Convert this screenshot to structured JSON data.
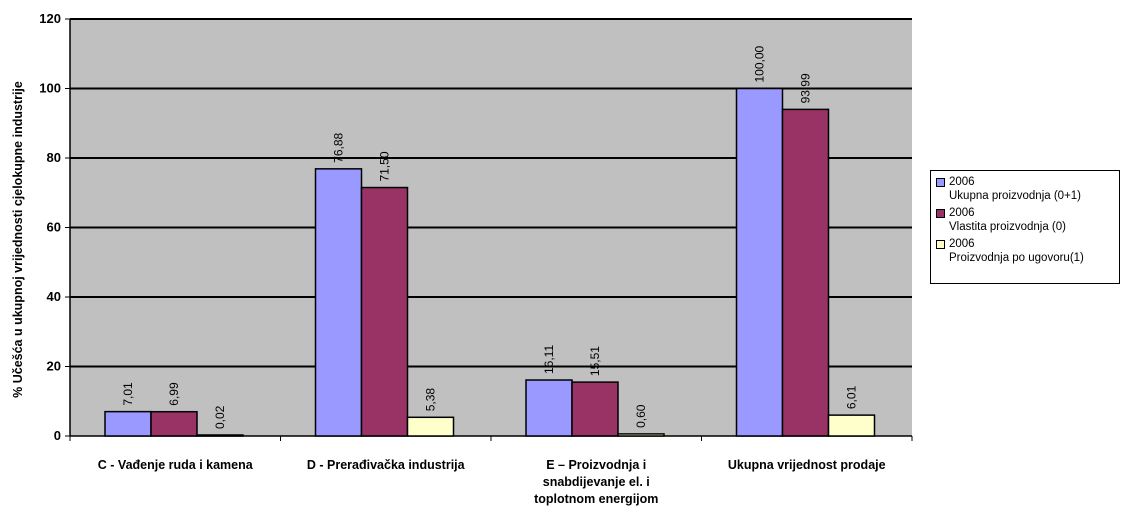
{
  "chart_data": {
    "type": "bar",
    "ylabel": "% Učešća u ukupnoj vrijednosti cjelokupne industrije",
    "xlabel": "",
    "ylim": [
      0,
      120
    ],
    "yticks": [
      "0",
      "20",
      "40",
      "60",
      "80",
      "100",
      "120"
    ],
    "grid": true,
    "legend_position": "right",
    "categories": [
      [
        "C - Vađenje ruda i kamena"
      ],
      [
        "D - Prerađivačka industrija"
      ],
      [
        "E – Proizvodnja i",
        "snabdijevanje el. i",
        "toplotnom energijom"
      ],
      [
        "Ukupna vrijednost prodaje"
      ]
    ],
    "series": [
      {
        "name_line1": "2006",
        "name_line2": "Ukupna proizvodnja (0+1)",
        "color": "#9999ff",
        "values": [
          7.01,
          76.88,
          16.11,
          100.0
        ],
        "labels": [
          "7,01",
          "76,88",
          "16,11",
          "100,00"
        ]
      },
      {
        "name_line1": "2006",
        "name_line2": "Vlastita proizvodnja (0)",
        "color": "#993366",
        "values": [
          6.99,
          71.5,
          15.51,
          93.99
        ],
        "labels": [
          "6,99",
          "71,50",
          "15,51",
          "93,99"
        ]
      },
      {
        "name_line1": "2006",
        "name_line2": "Proizvodnja po ugovoru(1)",
        "color": "#ffffcc",
        "values": [
          0.02,
          5.38,
          0.6,
          6.01
        ],
        "labels": [
          "0,02",
          "5,38",
          "0,60",
          "6,01"
        ]
      }
    ],
    "plot_bg": "#c0c0c0"
  }
}
